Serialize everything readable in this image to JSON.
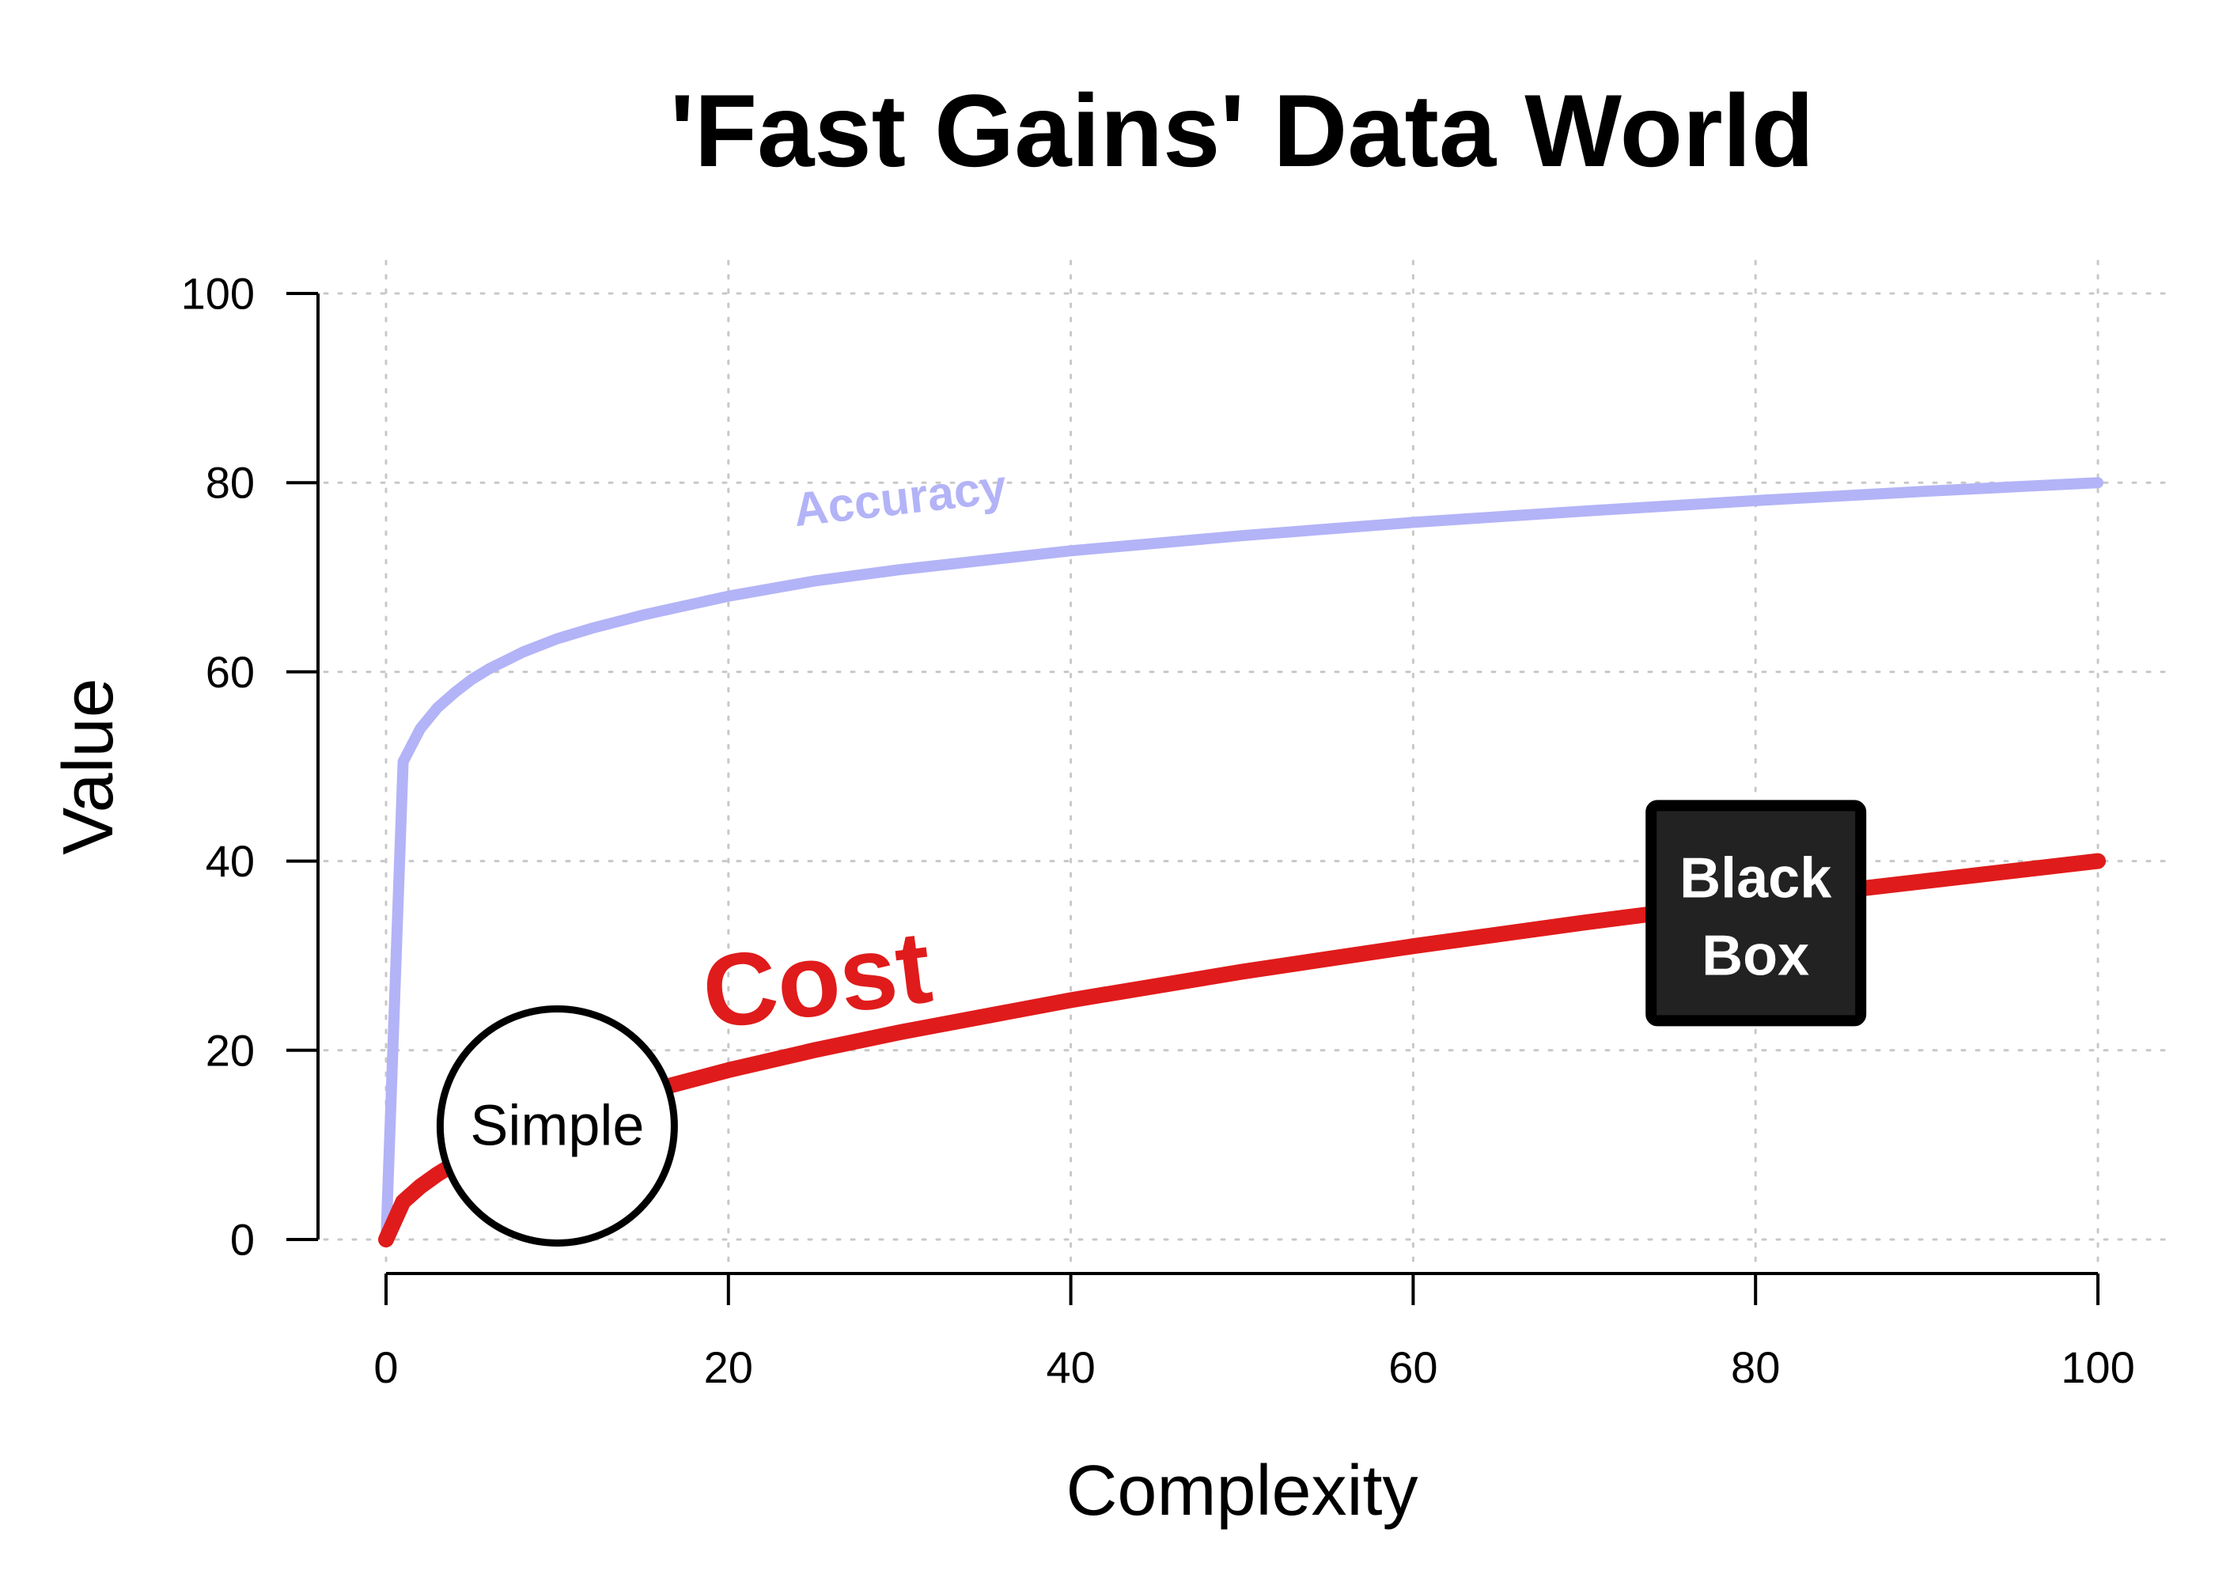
{
  "chart_data": {
    "type": "line",
    "title": "'Fast Gains' Data World",
    "xlabel": "Complexity",
    "ylabel": "Value",
    "xlim": [
      0,
      100
    ],
    "ylim": [
      0,
      100
    ],
    "xticks": [
      0,
      20,
      40,
      60,
      80,
      100
    ],
    "yticks": [
      0,
      20,
      40,
      60,
      80,
      100
    ],
    "grid": true,
    "x": [
      0,
      1,
      2,
      3,
      4,
      5,
      6,
      8,
      10,
      12,
      15,
      20,
      25,
      30,
      40,
      50,
      60,
      70,
      80,
      90,
      100
    ],
    "series": [
      {
        "name": "Accuracy",
        "color": "#b3b3f7",
        "values": [
          0,
          50.5,
          54,
          56.2,
          57.8,
          59.2,
          60.3,
          62.1,
          63.5,
          64.6,
          66,
          68,
          69.6,
          70.8,
          72.8,
          74.4,
          75.8,
          77,
          78.1,
          79.1,
          80
        ]
      },
      {
        "name": "Cost",
        "color": "#e01b1b",
        "values": [
          0,
          4,
          5.6,
          6.9,
          8,
          8.9,
          9.8,
          11.3,
          12.6,
          13.9,
          15.5,
          17.9,
          20,
          21.9,
          25.3,
          28.3,
          31,
          33.5,
          35.8,
          37.9,
          40
        ]
      }
    ],
    "annotations": {
      "simple": {
        "text": "Simple",
        "x": 10,
        "y": 12
      },
      "black_box": {
        "line1": "Black",
        "line2": "Box",
        "x": 80,
        "y": 34.5
      }
    }
  }
}
